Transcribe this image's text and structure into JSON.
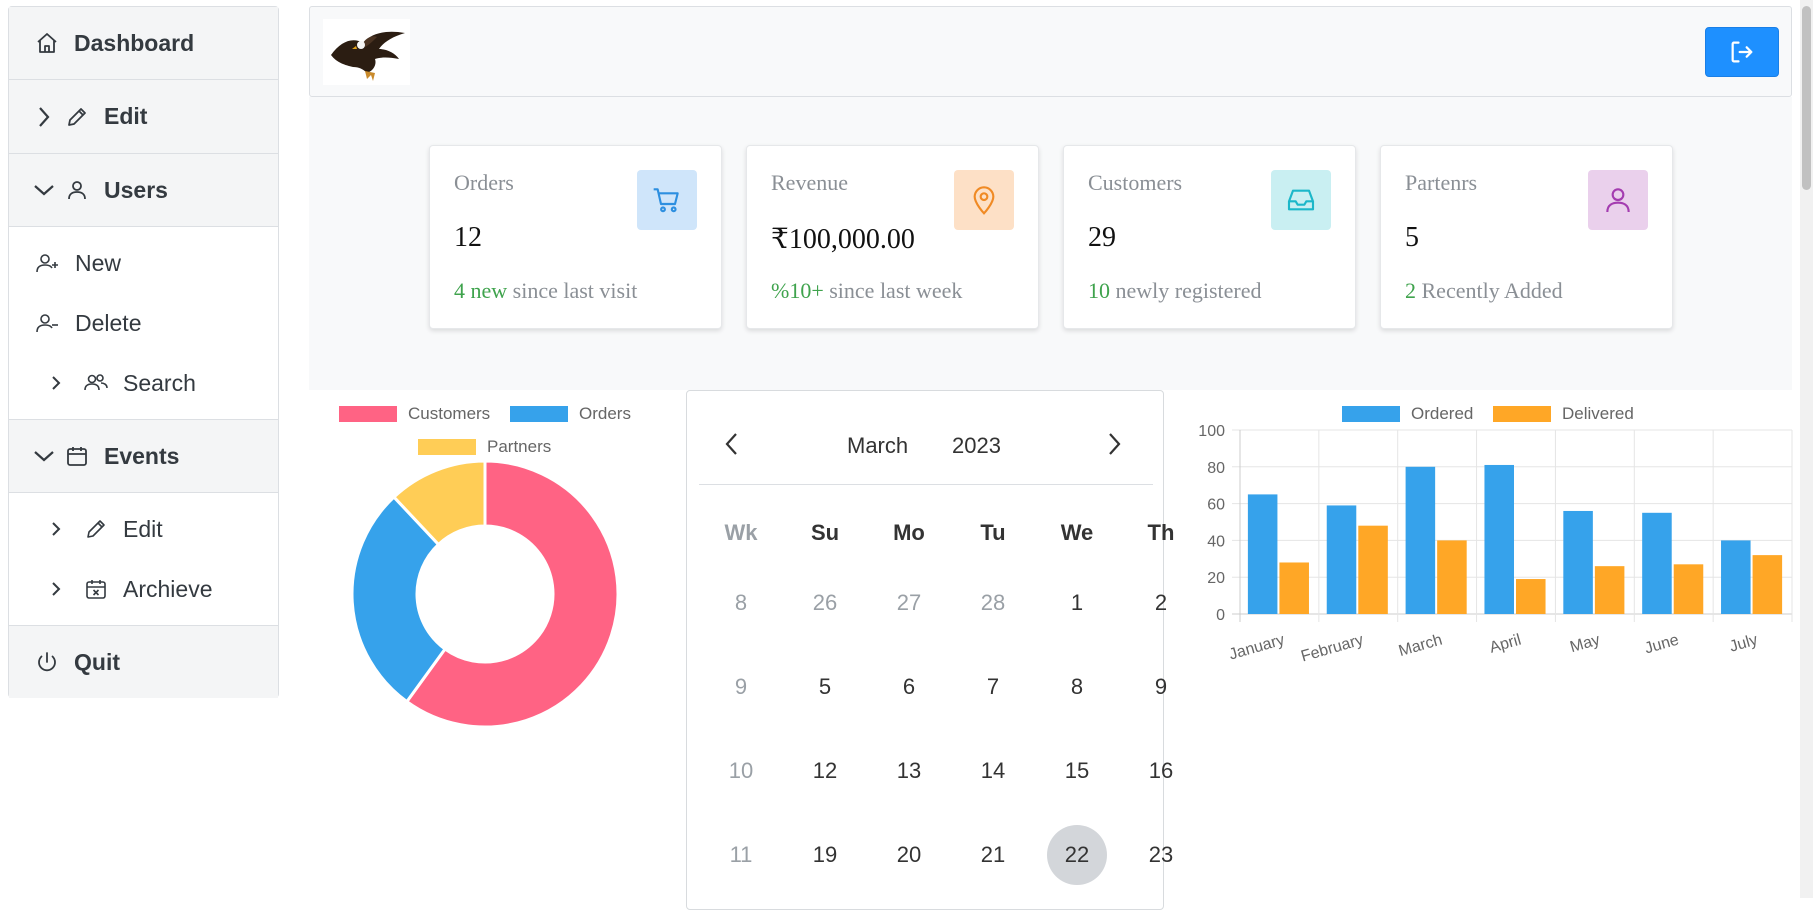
{
  "sidebar": {
    "dashboard": {
      "label": "Dashboard",
      "icon": "home-icon"
    },
    "edit": {
      "label": "Edit",
      "icon": "pencil-icon"
    },
    "users": {
      "label": "Users",
      "icon": "user-icon",
      "items": [
        {
          "label": "New",
          "icon": "user-plus-icon"
        },
        {
          "label": "Delete",
          "icon": "user-minus-icon"
        },
        {
          "label": "Search",
          "icon": "users-icon"
        }
      ]
    },
    "events": {
      "label": "Events",
      "icon": "calendar-icon",
      "items": [
        {
          "label": "Edit",
          "icon": "pencil-icon"
        },
        {
          "label": "Archieve",
          "icon": "calendar-x-icon"
        }
      ]
    },
    "quit": {
      "label": "Quit",
      "icon": "power-icon"
    }
  },
  "header": {
    "logo": "eagle-logo",
    "logout_icon": "logout-icon",
    "logout_color": "#1e90ff"
  },
  "stats": [
    {
      "title": "Orders",
      "value": "12",
      "highlight": "4 new",
      "rest": " since last visit",
      "icon": "cart-icon",
      "icon_bg": "#cfe5fa",
      "icon_color": "#2d8fe0"
    },
    {
      "title": "Revenue",
      "value": "₹100,000.00",
      "highlight": "%10+",
      "rest": " since last week",
      "icon": "map-pin-icon",
      "icon_bg": "#fde0c6",
      "icon_color": "#f08a24"
    },
    {
      "title": "Customers",
      "value": "29",
      "highlight": "10",
      "rest": " newly registered",
      "icon": "inbox-icon",
      "icon_bg": "#c9eff2",
      "icon_color": "#1cb7c9"
    },
    {
      "title": "Partenrs",
      "value": "5",
      "highlight": "2",
      "rest": " Recently Added",
      "icon": "user-icon",
      "icon_bg": "#ead0ec",
      "icon_color": "#a43cb0"
    }
  ],
  "calendar": {
    "month": "March",
    "year": "2023",
    "headers": [
      "Wk",
      "Su",
      "Mo",
      "Tu",
      "We",
      "Th"
    ],
    "rows": [
      {
        "wk": "8",
        "days": [
          "26",
          "27",
          "28",
          "1",
          "2"
        ],
        "muted": [
          true,
          true,
          true,
          false,
          false
        ]
      },
      {
        "wk": "9",
        "days": [
          "5",
          "6",
          "7",
          "8",
          "9"
        ],
        "muted": [
          false,
          false,
          false,
          false,
          false
        ]
      },
      {
        "wk": "10",
        "days": [
          "12",
          "13",
          "14",
          "15",
          "16"
        ],
        "muted": [
          false,
          false,
          false,
          false,
          false
        ]
      },
      {
        "wk": "11",
        "days": [
          "19",
          "20",
          "21",
          "22",
          "23"
        ],
        "muted": [
          false,
          false,
          false,
          false,
          false
        ]
      }
    ],
    "selected": "22"
  },
  "chart_data": [
    {
      "type": "pie",
      "variant": "doughnut",
      "labels": [
        "Customers",
        "Orders",
        "Partners"
      ],
      "values": [
        60,
        28,
        12
      ],
      "colors": [
        "#ff6384",
        "#36a2eb",
        "#ffcd56"
      ],
      "legend": "top"
    },
    {
      "type": "bar",
      "categories": [
        "January",
        "February",
        "March",
        "April",
        "May",
        "June",
        "July"
      ],
      "series": [
        {
          "name": "Ordered",
          "values": [
            65,
            59,
            80,
            81,
            56,
            55,
            40
          ],
          "color": "#36a2eb"
        },
        {
          "name": "Delivered",
          "values": [
            28,
            48,
            40,
            19,
            26,
            27,
            32
          ],
          "color": "#ffa726"
        }
      ],
      "ylim": [
        0,
        100
      ],
      "yticks": [
        0,
        20,
        40,
        60,
        80,
        100
      ],
      "grid": true,
      "legend": "top"
    }
  ]
}
